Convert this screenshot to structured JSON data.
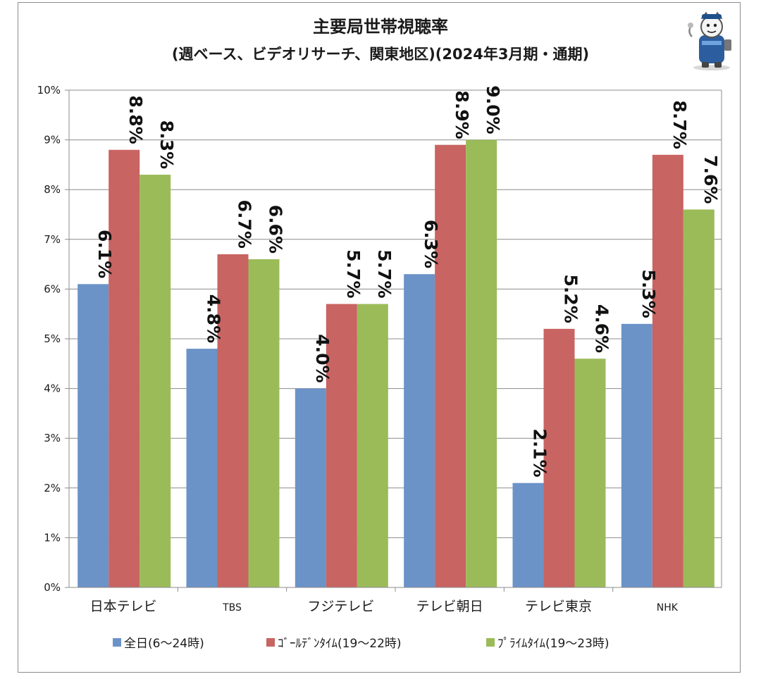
{
  "chart_data": {
    "type": "bar",
    "title": "主要局世帯視聴率",
    "subtitle": "(週ベース、ビデオリサーチ、関東地区)(2024年3月期・通期)",
    "xlabel": "",
    "ylabel": "",
    "ylim": [
      0,
      10
    ],
    "y_ticks": [
      "0%",
      "1%",
      "2%",
      "3%",
      "4%",
      "5%",
      "6%",
      "7%",
      "8%",
      "9%",
      "10%"
    ],
    "grid": true,
    "legend_position": "bottom",
    "categories": [
      "日本テレビ",
      "TBS",
      "フジテレビ",
      "テレビ朝日",
      "テレビ東京",
      "NHK"
    ],
    "series": [
      {
        "name": "全日(6〜24時)",
        "color": "#6b93c8",
        "values": [
          6.1,
          4.8,
          4.0,
          6.3,
          2.1,
          5.3
        ],
        "labels": [
          "6.1%",
          "4.8%",
          "4.0%",
          "6.3%",
          "2.1%",
          "5.3%"
        ]
      },
      {
        "name": "ｺﾞｰﾙﾃﾞﾝﾀｲﾑ(19〜22時)",
        "color": "#c86462",
        "values": [
          8.8,
          6.7,
          5.7,
          8.9,
          5.2,
          8.7
        ],
        "labels": [
          "8.8%",
          "6.7%",
          "5.7%",
          "8.9%",
          "5.2%",
          "8.7%"
        ]
      },
      {
        "name": "ﾌﾟﾗｲﾑﾀｲﾑ(19〜23時)",
        "color": "#9bbb59",
        "values": [
          8.3,
          6.6,
          5.7,
          9.0,
          4.6,
          7.6
        ],
        "labels": [
          "8.3%",
          "6.6%",
          "5.7%",
          "9.0%",
          "4.6%",
          "7.6%"
        ]
      }
    ]
  },
  "mascot": {
    "icon": "mascot-character-icon"
  }
}
